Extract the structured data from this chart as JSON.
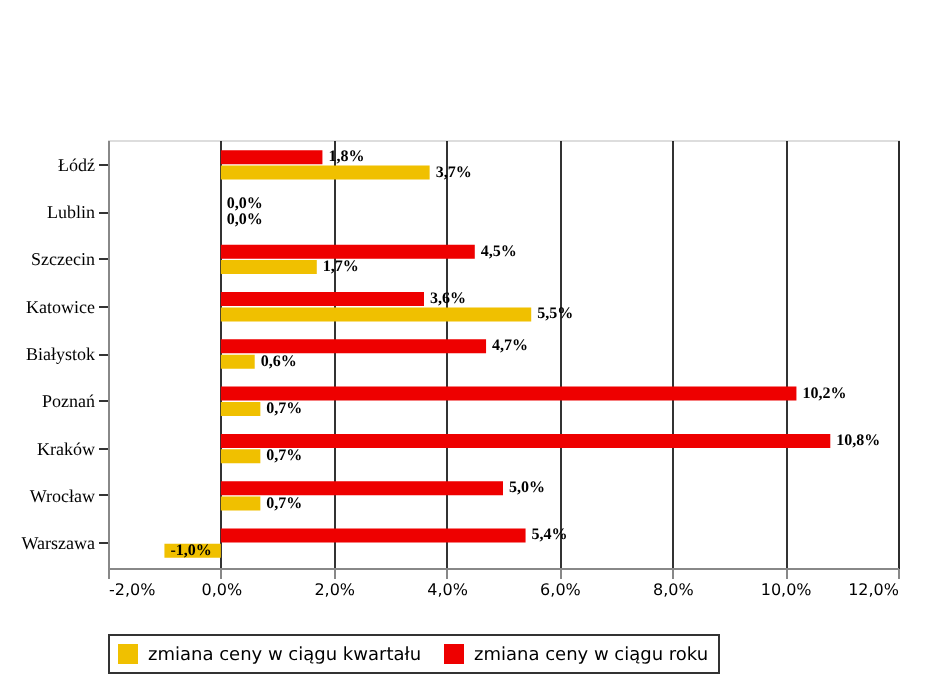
{
  "chart_data": {
    "type": "bar",
    "orientation": "horizontal",
    "categories": [
      "Łódź",
      "Lublin",
      "Szczecin",
      "Katowice",
      "Białystok",
      "Poznań",
      "Kraków",
      "Wrocław",
      "Warszawa"
    ],
    "series": [
      {
        "name": "zmiana ceny w ciągu kwartału",
        "color": "#f0c000",
        "values": [
          3.7,
          0.0,
          1.7,
          5.5,
          0.6,
          0.7,
          0.7,
          0.7,
          -1.0
        ],
        "value_labels": [
          "3,7%",
          "0,0%",
          "1,7%",
          "5,5%",
          "0,6%",
          "0,7%",
          "0,7%",
          "0,7%",
          "-1,0%"
        ]
      },
      {
        "name": "zmiana ceny w ciągu roku",
        "color": "#ee0000",
        "values": [
          1.8,
          0.0,
          4.5,
          3.6,
          4.7,
          10.2,
          10.8,
          5.0,
          5.4
        ],
        "value_labels": [
          "1,8%",
          "0,0%",
          "4,5%",
          "3,6%",
          "4,7%",
          "10,2%",
          "10,8%",
          "5,0%",
          "5,4%"
        ]
      }
    ],
    "xlim": [
      -2,
      12
    ],
    "xticks": [
      {
        "value": -2,
        "label": "-2,0%"
      },
      {
        "value": 0,
        "label": "0,0%"
      },
      {
        "value": 2,
        "label": "2,0%"
      },
      {
        "value": 4,
        "label": "4,0%"
      },
      {
        "value": 6,
        "label": "6,0%"
      },
      {
        "value": 8,
        "label": "8,0%"
      },
      {
        "value": 10,
        "label": "10,0%"
      },
      {
        "value": 12,
        "label": "12,0%"
      }
    ],
    "grid": "x",
    "legend": "bottom"
  }
}
